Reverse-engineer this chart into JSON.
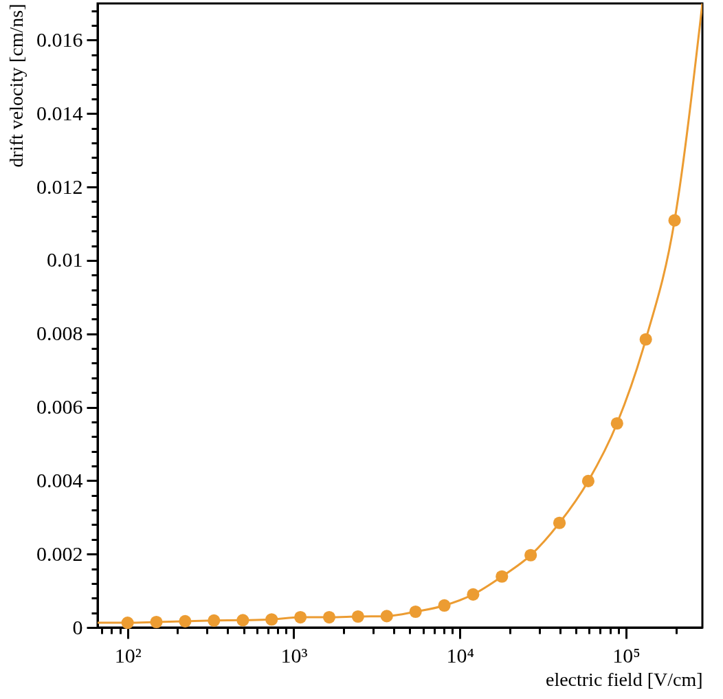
{
  "chart_data": {
    "type": "scatter",
    "xlabel": "electric field [V/cm]",
    "ylabel": "drift velocity [cm/ns]",
    "log": "x",
    "grid": false,
    "legend": false,
    "marker": "circle",
    "xlim": [
      66,
      288000
    ],
    "ylim": [
      0,
      0.017
    ],
    "xticks": [
      {
        "value": 70,
        "label": null
      },
      {
        "value": 80,
        "label": null
      },
      {
        "value": 90,
        "label": null
      },
      {
        "value": 100,
        "label": "10²"
      },
      {
        "value": 200,
        "label": null
      },
      {
        "value": 300,
        "label": null
      },
      {
        "value": 400,
        "label": null
      },
      {
        "value": 500,
        "label": null
      },
      {
        "value": 600,
        "label": null
      },
      {
        "value": 700,
        "label": null
      },
      {
        "value": 800,
        "label": null
      },
      {
        "value": 900,
        "label": null
      },
      {
        "value": 1000,
        "label": "10³"
      },
      {
        "value": 2000,
        "label": null
      },
      {
        "value": 3000,
        "label": null
      },
      {
        "value": 4000,
        "label": null
      },
      {
        "value": 5000,
        "label": null
      },
      {
        "value": 6000,
        "label": null
      },
      {
        "value": 7000,
        "label": null
      },
      {
        "value": 8000,
        "label": null
      },
      {
        "value": 9000,
        "label": null
      },
      {
        "value": 10000,
        "label": "10⁴"
      },
      {
        "value": 20000,
        "label": null
      },
      {
        "value": 30000,
        "label": null
      },
      {
        "value": 40000,
        "label": null
      },
      {
        "value": 50000,
        "label": null
      },
      {
        "value": 60000,
        "label": null
      },
      {
        "value": 70000,
        "label": null
      },
      {
        "value": 80000,
        "label": null
      },
      {
        "value": 90000,
        "label": null
      },
      {
        "value": 100000,
        "label": "10⁵"
      },
      {
        "value": 200000,
        "label": null
      }
    ],
    "yticks": [
      0,
      {
        "value": 0.0004,
        "label": null
      },
      {
        "value": 0.0008,
        "label": null
      },
      {
        "value": 0.0012,
        "label": null
      },
      {
        "value": 0.0016,
        "label": null
      },
      0.002,
      {
        "value": 0.0024,
        "label": null
      },
      {
        "value": 0.0028,
        "label": null
      },
      {
        "value": 0.0032,
        "label": null
      },
      {
        "value": 0.0036,
        "label": null
      },
      0.004,
      {
        "value": 0.0044,
        "label": null
      },
      {
        "value": 0.0048,
        "label": null
      },
      {
        "value": 0.0052,
        "label": null
      },
      {
        "value": 0.0056,
        "label": null
      },
      0.006,
      {
        "value": 0.0064,
        "label": null
      },
      {
        "value": 0.0068,
        "label": null
      },
      {
        "value": 0.0072,
        "label": null
      },
      {
        "value": 0.0076,
        "label": null
      },
      0.008,
      {
        "value": 0.0084,
        "label": null
      },
      {
        "value": 0.0088,
        "label": null
      },
      {
        "value": 0.0092,
        "label": null
      },
      {
        "value": 0.0096,
        "label": null
      },
      0.01,
      {
        "value": 0.0104,
        "label": null
      },
      {
        "value": 0.0108,
        "label": null
      },
      {
        "value": 0.0112,
        "label": null
      },
      {
        "value": 0.0116,
        "label": null
      },
      0.012,
      {
        "value": 0.0124,
        "label": null
      },
      {
        "value": 0.0128,
        "label": null
      },
      {
        "value": 0.0132,
        "label": null
      },
      {
        "value": 0.0136,
        "label": null
      },
      0.014,
      {
        "value": 0.0144,
        "label": null
      },
      {
        "value": 0.0148,
        "label": null
      },
      {
        "value": 0.0152,
        "label": null
      },
      {
        "value": 0.0156,
        "label": null
      },
      0.016,
      {
        "value": 0.0164,
        "label": null
      },
      {
        "value": 0.0168,
        "label": null
      }
    ],
    "series": [
      {
        "type": "line",
        "color": "#ec9c32",
        "marker": "none",
        "x": [
          66,
          100,
          149,
          222,
          331,
          494,
          736,
          1097,
          1635,
          2436,
          3630,
          5409,
          8060,
          12010,
          17897,
          26669,
          39740,
          59218,
          88243,
          131493,
          195941,
          288000
        ],
        "values": [
          0.00013,
          0.00013,
          0.00015,
          0.00017,
          0.00019,
          0.0002,
          0.00022,
          0.00028,
          0.00028,
          0.0003,
          0.00031,
          0.00043,
          0.0006,
          0.0009,
          0.00139,
          0.00197,
          0.00285,
          0.00399,
          0.00556,
          0.00785,
          0.01109,
          0.017
        ]
      },
      {
        "type": "scatter",
        "color": "#ec9c32",
        "x": [
          100,
          149,
          222,
          331,
          494,
          736,
          1097,
          1635,
          2436,
          3630,
          5409,
          8060,
          12010,
          17897,
          26669,
          39740,
          59218,
          88243,
          131493,
          195941
        ],
        "values": [
          0.00013,
          0.00015,
          0.00017,
          0.00019,
          0.0002,
          0.00022,
          0.00028,
          0.00028,
          0.0003,
          0.00031,
          0.00043,
          0.0006,
          0.0009,
          0.00139,
          0.00197,
          0.00285,
          0.00399,
          0.00556,
          0.00785,
          0.01109
        ]
      }
    ]
  }
}
